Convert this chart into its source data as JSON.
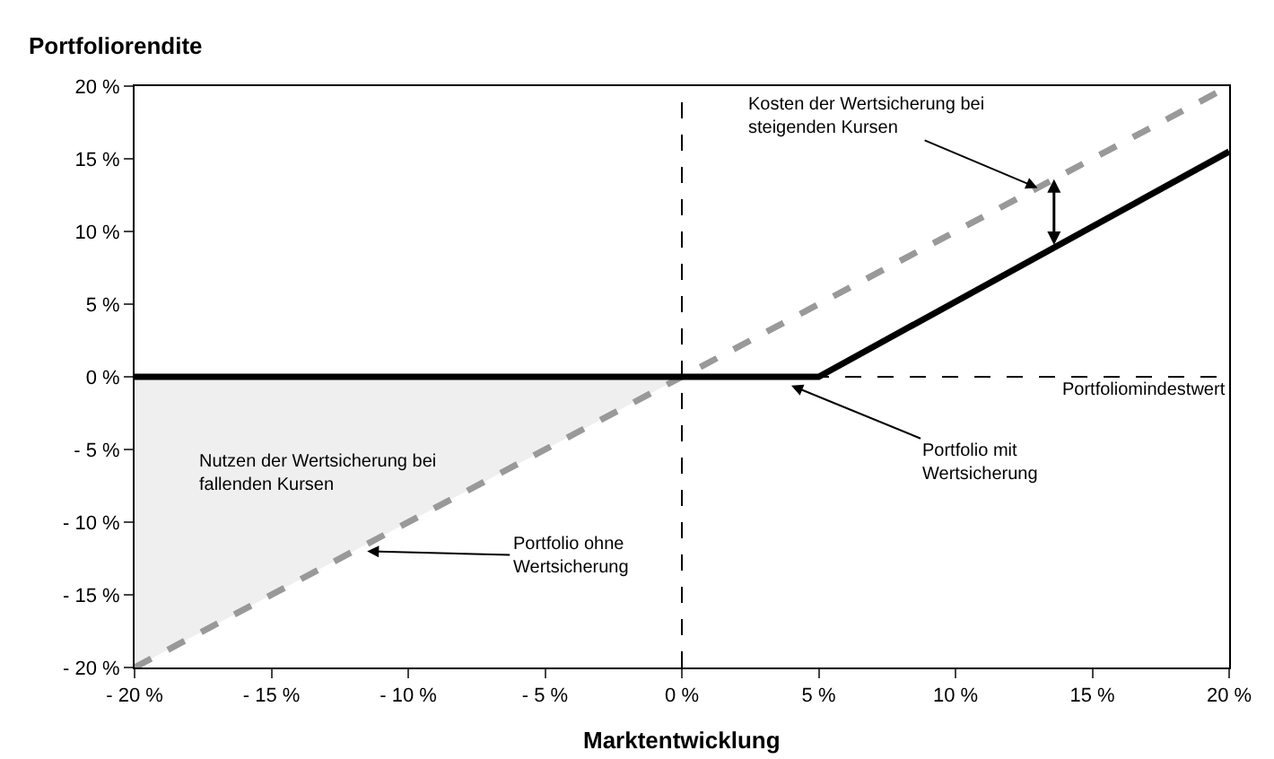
{
  "chart_data": {
    "type": "line",
    "ylabel": "Portfoliorendite",
    "xlabel": "Marktentwicklung",
    "series": [
      {
        "type": "area",
        "color": "#efefef",
        "x": [
          -20,
          0
        ],
        "values": [
          -20,
          0
        ]
      },
      {
        "color": "#999999",
        "line_style": "dashed",
        "x": [
          -20,
          20
        ],
        "values": [
          -20,
          20
        ]
      },
      {
        "color": "#000000",
        "line_style": "solid",
        "x": [
          -20,
          5,
          20
        ],
        "values": [
          0,
          0,
          15.5
        ]
      }
    ],
    "xlim": [
      -20,
      20
    ],
    "ylim": [
      -20,
      20
    ],
    "xticks": [
      {
        "value": -20,
        "label": "- 20 %"
      },
      {
        "value": -15,
        "label": "- 15 %"
      },
      {
        "value": -10,
        "label": "- 10 %"
      },
      {
        "value": -5,
        "label": "- 5 %"
      },
      {
        "value": 0,
        "label": "0 %"
      },
      {
        "value": 5,
        "label": "5 %"
      },
      {
        "value": 10,
        "label": "10 %"
      },
      {
        "value": 15,
        "label": "15 %"
      },
      {
        "value": 20,
        "label": "20 %"
      }
    ],
    "yticks": [
      {
        "value": -20,
        "label": "- 20 %"
      },
      {
        "value": -15,
        "label": "- 15 %"
      },
      {
        "value": -10,
        "label": "- 10 %"
      },
      {
        "value": -5,
        "label": "- 5 %"
      },
      {
        "value": 0,
        "label": "0 %"
      },
      {
        "value": 5,
        "label": "5 %"
      },
      {
        "value": 10,
        "label": "10 %"
      },
      {
        "value": 15,
        "label": "15 %"
      },
      {
        "value": 20,
        "label": "20 %"
      }
    ],
    "ref_lines": [
      {
        "axis": "x",
        "value": 0,
        "line_style": "dashed",
        "color": "#000000"
      },
      {
        "axis": "y",
        "value": 0,
        "line_style": "dashed",
        "color": "#000000",
        "label": "Portfoliomindestwert"
      }
    ],
    "annotations": [
      {
        "text": "Kosten der Wertsicherung bei steigenden Kursen",
        "x": 13,
        "y": 13
      },
      {
        "text": "Portfolio mit Wertsicherung",
        "x": 4,
        "y": -0.6
      },
      {
        "text": "Portfolio ohne Wertsicherung",
        "x": -11.5,
        "y": -12
      },
      "Nutzen der Wertsicherung bei fallenden Kursen"
    ],
    "legend": false,
    "marker": "none"
  }
}
